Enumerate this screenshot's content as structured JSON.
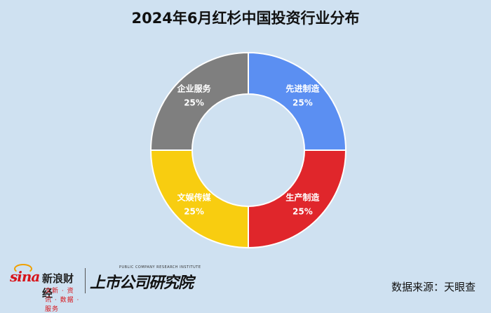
{
  "chart_data": {
    "type": "pie",
    "title": "2024年6月红杉中国投资行业分布",
    "donut": true,
    "slices": [
      {
        "name": "先进制造",
        "value": 25,
        "label": "25%",
        "color": "#5b8ff2"
      },
      {
        "name": "生产制造",
        "value": 25,
        "label": "25%",
        "color": "#e0262b"
      },
      {
        "name": "文娱传媒",
        "value": 25,
        "label": "25%",
        "color": "#f8cd10"
      },
      {
        "name": "企业服务",
        "value": 25,
        "label": "25%",
        "color": "#7f7f7f"
      }
    ],
    "background_color": "#cfe1f1"
  },
  "footer": {
    "sina_logo_text": "sina",
    "sina_name": "新浪财经",
    "sina_sub": "文新 · 资讯 · 数据 · 服务",
    "institute_name": "上市公司研究院",
    "institute_en": "PUBLIC COMPANY RESEARCH INSTITUTE",
    "source": "数据来源：天眼查"
  }
}
